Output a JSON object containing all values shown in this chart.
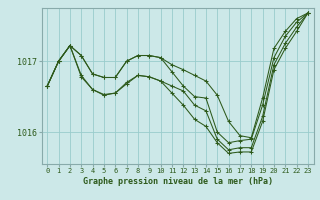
{
  "title": "Graphe pression niveau de la mer (hPa)",
  "bg_color": "#cce8e8",
  "grid_color": "#99cccc",
  "line_color": "#2d5a1b",
  "xlim": [
    -0.5,
    23.5
  ],
  "ylim": [
    1015.55,
    1017.75
  ],
  "yticks": [
    1016,
    1017
  ],
  "xticks": [
    0,
    1,
    2,
    3,
    4,
    5,
    6,
    7,
    8,
    9,
    10,
    11,
    12,
    13,
    14,
    15,
    16,
    17,
    18,
    19,
    20,
    21,
    22,
    23
  ],
  "series": [
    [
      1016.65,
      1017.0,
      1017.22,
      1017.08,
      1016.82,
      1016.77,
      1016.77,
      1017.0,
      1017.08,
      1017.08,
      1017.05,
      1016.95,
      1016.88,
      1016.8,
      1016.72,
      1016.52,
      1016.15,
      1015.95,
      1015.92,
      1016.48,
      1017.18,
      1017.42,
      1017.6,
      1017.68
    ],
    [
      1016.65,
      1017.0,
      1017.22,
      1017.08,
      1016.82,
      1016.77,
      1016.77,
      1017.0,
      1017.08,
      1017.08,
      1017.05,
      1016.85,
      1016.65,
      1016.5,
      1016.48,
      1016.0,
      1015.85,
      1015.88,
      1015.9,
      1016.38,
      1017.05,
      1017.35,
      1017.55,
      1017.68
    ],
    [
      1016.65,
      1017.0,
      1017.22,
      1016.8,
      1016.6,
      1016.53,
      1016.55,
      1016.68,
      1016.8,
      1016.78,
      1016.72,
      1016.65,
      1016.58,
      1016.38,
      1016.3,
      1015.9,
      1015.75,
      1015.78,
      1015.78,
      1016.22,
      1016.95,
      1017.25,
      1017.48,
      1017.68
    ],
    [
      1016.65,
      1017.0,
      1017.22,
      1016.78,
      1016.6,
      1016.52,
      1016.55,
      1016.7,
      1016.8,
      1016.78,
      1016.72,
      1016.55,
      1016.38,
      1016.18,
      1016.08,
      1015.85,
      1015.7,
      1015.72,
      1015.72,
      1016.15,
      1016.88,
      1017.18,
      1017.42,
      1017.68
    ]
  ]
}
